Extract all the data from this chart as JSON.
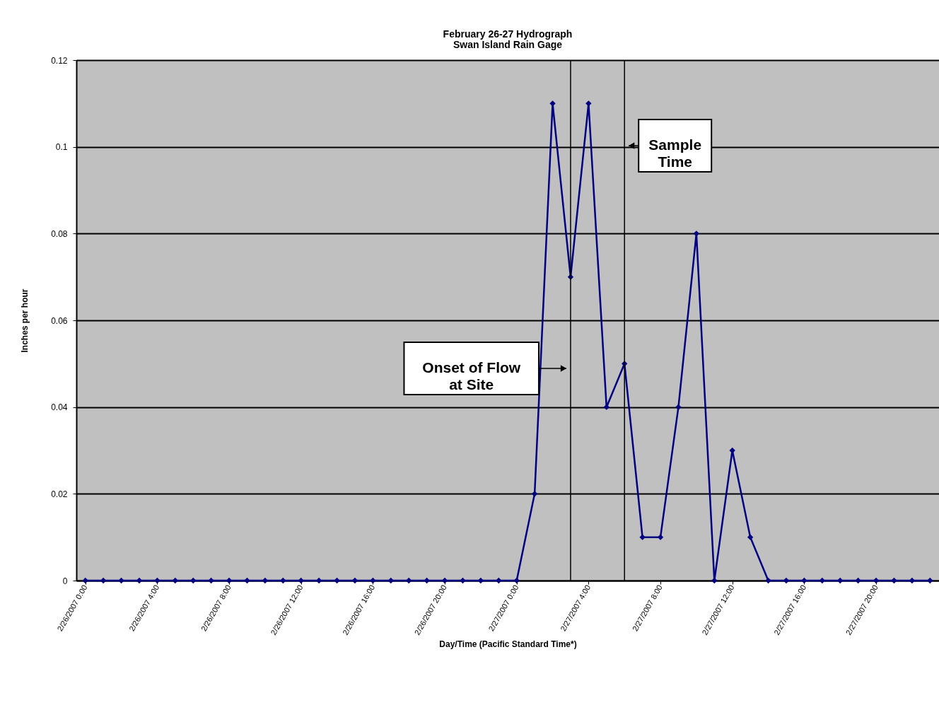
{
  "chart_data": {
    "type": "line",
    "title": "February 26-27 Hydrograph",
    "subtitle": "Swan Island Rain Gage",
    "xlabel": "Day/Time (Pacific Standard Time*)",
    "ylabel": "Inches per hour",
    "x": [
      "2007-02-26T00:00",
      "2007-02-26T01:00",
      "2007-02-26T02:00",
      "2007-02-26T03:00",
      "2007-02-26T04:00",
      "2007-02-26T05:00",
      "2007-02-26T06:00",
      "2007-02-26T07:00",
      "2007-02-26T08:00",
      "2007-02-26T09:00",
      "2007-02-26T10:00",
      "2007-02-26T11:00",
      "2007-02-26T12:00",
      "2007-02-26T13:00",
      "2007-02-26T14:00",
      "2007-02-26T15:00",
      "2007-02-26T16:00",
      "2007-02-26T17:00",
      "2007-02-26T18:00",
      "2007-02-26T19:00",
      "2007-02-26T20:00",
      "2007-02-26T21:00",
      "2007-02-26T22:00",
      "2007-02-26T23:00",
      "2007-02-27T00:00",
      "2007-02-27T01:00",
      "2007-02-27T02:00",
      "2007-02-27T03:00",
      "2007-02-27T04:00",
      "2007-02-27T05:00",
      "2007-02-27T06:00",
      "2007-02-27T07:00",
      "2007-02-27T08:00",
      "2007-02-27T09:00",
      "2007-02-27T10:00",
      "2007-02-27T11:00",
      "2007-02-27T12:00",
      "2007-02-27T13:00",
      "2007-02-27T14:00",
      "2007-02-27T15:00",
      "2007-02-27T16:00",
      "2007-02-27T17:00",
      "2007-02-27T18:00",
      "2007-02-27T19:00",
      "2007-02-27T20:00",
      "2007-02-27T21:00",
      "2007-02-27T22:00",
      "2007-02-27T23:00"
    ],
    "series": [
      {
        "color": "#000080",
        "values": [
          0,
          0,
          0,
          0,
          0,
          0,
          0,
          0,
          0,
          0,
          0,
          0,
          0,
          0,
          0,
          0,
          0,
          0,
          0,
          0,
          0,
          0,
          0,
          0,
          0,
          0.02,
          0.11,
          0.07,
          0.11,
          0.04,
          0.05,
          0.01,
          0.01,
          0.04,
          0.08,
          0,
          0.03,
          0.01,
          0,
          0,
          0,
          0,
          0,
          0,
          0,
          0,
          0,
          0
        ]
      }
    ],
    "xlim": [
      "2007-02-25T23:30",
      "2007-02-27T23:30"
    ],
    "xticks": [
      {
        "value": "2007-02-26T00:00",
        "label": "2/26/2007 0:00"
      },
      {
        "value": "2007-02-26T04:00",
        "label": "2/26/2007 4:00"
      },
      {
        "value": "2007-02-26T08:00",
        "label": "2/26/2007 8:00"
      },
      {
        "value": "2007-02-26T12:00",
        "label": "2/26/2007 12:00"
      },
      {
        "value": "2007-02-26T16:00",
        "label": "2/26/2007 16:00"
      },
      {
        "value": "2007-02-26T20:00",
        "label": "2/26/2007 20:00"
      },
      {
        "value": "2007-02-27T00:00",
        "label": "2/27/2007 0:00"
      },
      {
        "value": "2007-02-27T04:00",
        "label": "2/27/2007 4:00"
      },
      {
        "value": "2007-02-27T08:00",
        "label": "2/27/2007 8:00"
      },
      {
        "value": "2007-02-27T12:00",
        "label": "2/27/2007 12:00"
      },
      {
        "value": "2007-02-27T16:00",
        "label": "2/27/2007 16:00"
      },
      {
        "value": "2007-02-27T20:00",
        "label": "2/27/2007 20:00"
      }
    ],
    "ylim": [
      0,
      0.12
    ],
    "yticks": [
      0,
      0.02,
      0.04,
      0.06,
      0.08,
      0.1,
      0.12
    ],
    "ref_lines": [
      {
        "axis": "x",
        "value": "2007-02-27T03:00",
        "label": "Onset of Flow at Site",
        "color": "#000000"
      },
      {
        "axis": "x",
        "value": "2007-02-27T06:00",
        "label": "Sample Time",
        "color": "#000000"
      }
    ],
    "grid": "y",
    "marker": "diamond",
    "line_style": "solid"
  }
}
